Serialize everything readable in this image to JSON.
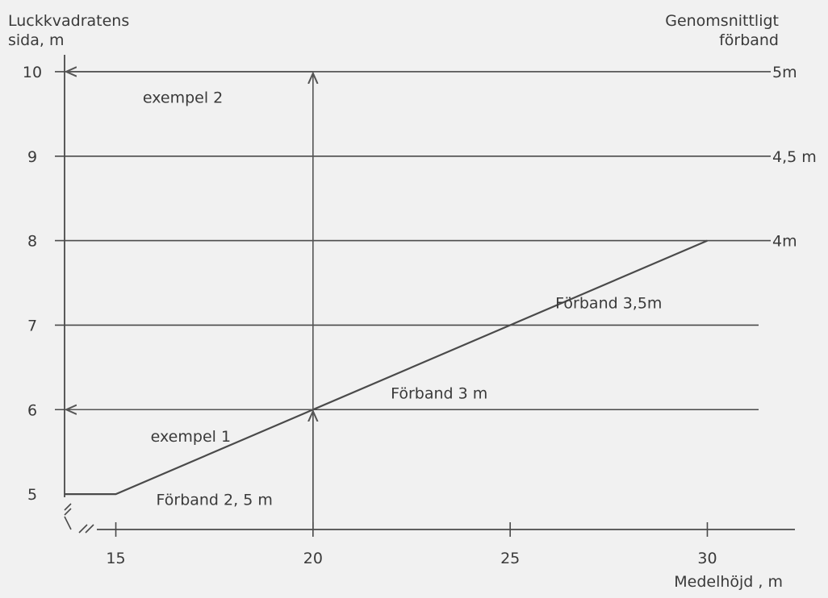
{
  "chart_data": {
    "type": "line",
    "ylabel_lines": [
      "Luckkvadratens",
      "sida, m"
    ],
    "right_label_lines": [
      "Genomsnittligt",
      "förband"
    ],
    "xlabel": "Medelhöjd , m",
    "x_ticks": [
      15,
      20,
      25,
      30
    ],
    "y_ticks": [
      5,
      6,
      7,
      8,
      9,
      10
    ],
    "xlim": [
      13.7,
      31.3
    ],
    "ylim": [
      4.6,
      10.2
    ],
    "grid_lines": [
      {
        "y": 6
      },
      {
        "y": 7
      },
      {
        "y": 8,
        "label": "4m"
      },
      {
        "y": 9,
        "label": "4,5 m"
      },
      {
        "y": 10,
        "label": "5m"
      }
    ],
    "series": [
      {
        "points": [
          {
            "x": 13.7,
            "y": 5
          },
          {
            "x": 15,
            "y": 5
          },
          {
            "x": 20,
            "y": 6
          },
          {
            "x": 30,
            "y": 8
          }
        ]
      }
    ],
    "annotations": [
      {
        "text": "Förband 2, 5 m",
        "x": 17.5,
        "y": 4.87
      },
      {
        "text": "Förband 3 m",
        "x": 23.2,
        "y": 6.13
      },
      {
        "text": "Förband 3,5m",
        "x": 27.5,
        "y": 7.2
      },
      {
        "text": "exempel 1",
        "x": 16.9,
        "y": 5.62
      },
      {
        "text": "exempel 2",
        "x": 16.7,
        "y": 9.63
      }
    ],
    "examples": [
      {
        "name": "exempel 1",
        "x": 20,
        "y": 6
      },
      {
        "name": "exempel 2",
        "x": 20,
        "y": 10
      }
    ],
    "axis_break": true
  }
}
